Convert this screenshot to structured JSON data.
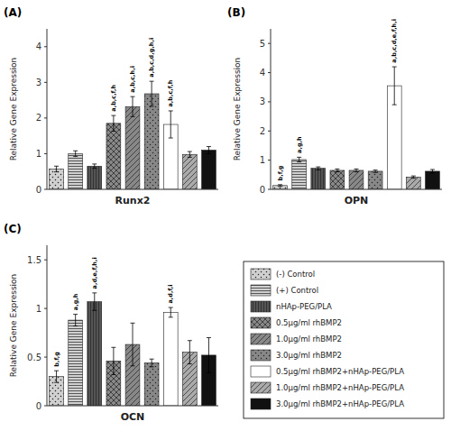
{
  "chart_data": [
    {
      "type": "bar",
      "title": "(A)",
      "xlabel": "Runx2",
      "ylabel": "Relative Gene Expression",
      "categories": [
        "(-) Control",
        "(+) Control",
        "nHAp-PEG/PLA",
        "0.5μg/ml rhBMP2",
        "1.0μg/ml rhBMP2",
        "3.0μg/ml rhBMP2",
        "0.5μg/ml rhBMP2+nHAp-PEG/PLA",
        "1.0μg/ml rhBMP2+nHAp-PEG/PLA",
        "3.0μg/ml rhBMP2+nHAp-PEG/PLA"
      ],
      "values": [
        0.57,
        1.0,
        0.65,
        1.85,
        2.32,
        2.68,
        1.82,
        0.98,
        1.1
      ],
      "errors": [
        0.08,
        0.08,
        0.06,
        0.22,
        0.28,
        0.35,
        0.38,
        0.08,
        0.1
      ],
      "annotations": [
        null,
        null,
        null,
        "a,b,c,f,h",
        "a,b,c,h,i",
        "a,b,c,d,g,h,i",
        "a,b,c,f,h",
        null,
        null
      ],
      "colors": [
        "#d0d0d0",
        "#d0d0d0",
        "#555555",
        "#888888",
        "#888888",
        "#888888",
        "#ffffff",
        "#aaaaaa",
        "#111111"
      ],
      "ylim": [
        0,
        4.5
      ],
      "yticks": [
        0,
        1,
        2,
        3,
        4
      ],
      "grid": false,
      "tick_labels": "y",
      "legend": "right"
    },
    {
      "type": "bar",
      "title": "(B)",
      "xlabel": "OPN",
      "ylabel": "Relative Gene Expression",
      "categories": [
        "(-) Control",
        "(+) Control",
        "nHAp-PEG/PLA",
        "0.5μg/ml rhBMP2",
        "1.0μg/ml rhBMP2",
        "3.0μg/ml rhBMP2",
        "0.5μg/ml rhBMP2+nHAp-PEG/PLA",
        "1.0μg/ml rhBMP2+nHAp-PEG/PLA",
        "3.0μg/ml rhBMP2+nHAp-PEG/PLA"
      ],
      "values": [
        0.13,
        1.02,
        0.72,
        0.65,
        0.65,
        0.62,
        3.55,
        0.42,
        0.62
      ],
      "errors": [
        0.03,
        0.08,
        0.05,
        0.05,
        0.05,
        0.04,
        0.65,
        0.04,
        0.06
      ],
      "annotations": [
        "b,f,g",
        "a,g,h",
        null,
        null,
        null,
        null,
        "a,b,c,d,e,f,h,i",
        null,
        null
      ],
      "colors": [
        "#d0d0d0",
        "#d0d0d0",
        "#555555",
        "#888888",
        "#888888",
        "#888888",
        "#ffffff",
        "#aaaaaa",
        "#111111"
      ],
      "ylim": [
        0,
        5.5
      ],
      "yticks": [
        0,
        1,
        2,
        3,
        4,
        5
      ],
      "grid": false,
      "tick_labels": "y"
    },
    {
      "type": "bar",
      "title": "(C)",
      "xlabel": "OCN",
      "ylabel": "Relative Gene Expression",
      "categories": [
        "(-) Control",
        "(+) Control",
        "nHAp-PEG/PLA",
        "0.5μg/ml rhBMP2",
        "1.0μg/ml rhBMP2",
        "3.0μg/ml rhBMP2",
        "0.5μg/ml rhBMP2+nHAp-PEG/PLA",
        "1.0μg/ml rhBMP2+nHAp-PEG/PLA",
        "3.0μg/ml rhBMP2+nHAp-PEG/PLA"
      ],
      "values": [
        0.3,
        0.88,
        1.07,
        0.46,
        0.63,
        0.44,
        0.96,
        0.55,
        0.52
      ],
      "errors": [
        0.06,
        0.06,
        0.09,
        0.14,
        0.22,
        0.04,
        0.05,
        0.12,
        0.18
      ],
      "annotations": [
        "b,f,g",
        "a,g,h",
        "a,d,e,f,h,i",
        null,
        null,
        null,
        "a,d,f,i",
        null,
        null
      ],
      "colors": [
        "#d0d0d0",
        "#d0d0d0",
        "#555555",
        "#888888",
        "#888888",
        "#888888",
        "#ffffff",
        "#aaaaaa",
        "#111111"
      ],
      "ylim": [
        0,
        1.65
      ],
      "yticks": [
        0.0,
        0.5,
        1.0,
        1.5
      ],
      "grid": false,
      "tick_labels": "y"
    }
  ]
}
